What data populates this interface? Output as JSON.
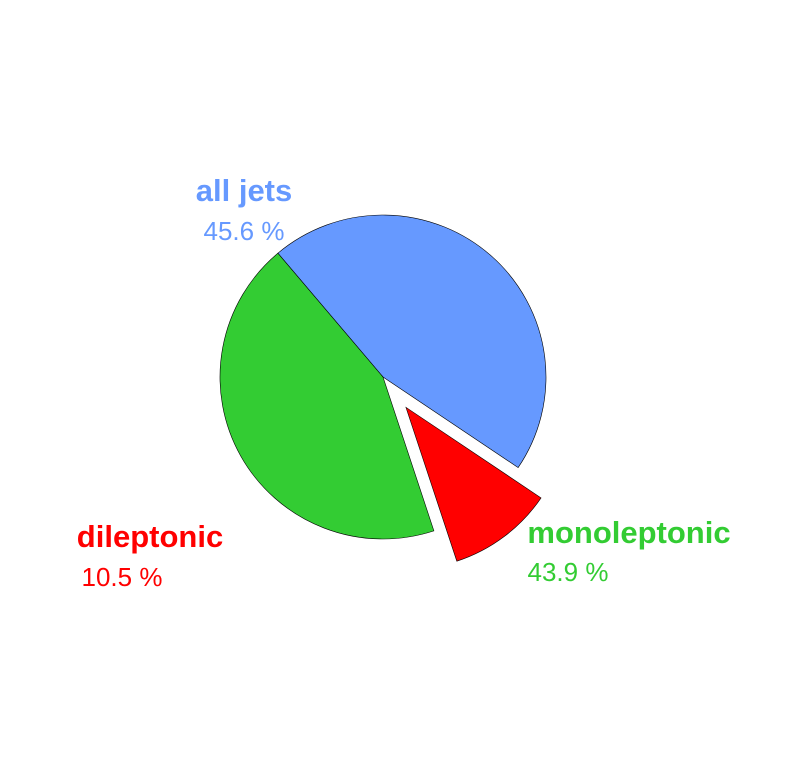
{
  "chart_data": {
    "type": "pie",
    "title": "",
    "legend": "none",
    "slices": [
      {
        "label": "all jets",
        "value": 45.6,
        "display": "45.6 %",
        "color": "#6699ff"
      },
      {
        "label": "monoleptonic",
        "value": 43.9,
        "display": "43.9 %",
        "color": "#33cc33"
      },
      {
        "label": "dileptonic",
        "value": 10.5,
        "display": "10.5 %",
        "color": "#ff0000"
      }
    ]
  }
}
